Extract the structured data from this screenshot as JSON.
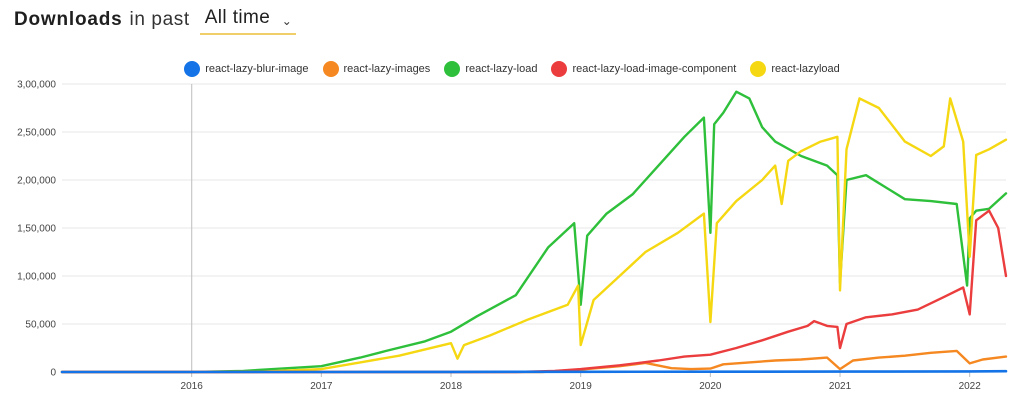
{
  "header": {
    "title": "Downloads",
    "in_past": "in past",
    "range_value": "All time"
  },
  "chart_data": {
    "type": "line",
    "title": "",
    "xlabel": "",
    "ylabel": "",
    "xlim": [
      2015.0,
      2022.28
    ],
    "ylim": [
      0,
      300000
    ],
    "grid": "horizontal",
    "legend_position": "top-center",
    "x_ticks": [
      {
        "value": 2016,
        "label": "2016"
      },
      {
        "value": 2017,
        "label": "2017"
      },
      {
        "value": 2018,
        "label": "2018"
      },
      {
        "value": 2019,
        "label": "2019"
      },
      {
        "value": 2020,
        "label": "2020"
      },
      {
        "value": 2021,
        "label": "2021"
      },
      {
        "value": 2022,
        "label": "2022"
      }
    ],
    "y_ticks": [
      {
        "value": 0,
        "label": "0"
      },
      {
        "value": 50000,
        "label": "50,000"
      },
      {
        "value": 100000,
        "label": "1,00,000"
      },
      {
        "value": 150000,
        "label": "1,50,000"
      },
      {
        "value": 200000,
        "label": "2,00,000"
      },
      {
        "value": 250000,
        "label": "2,50,000"
      },
      {
        "value": 300000,
        "label": "3,00,000"
      }
    ],
    "marker_line_x": 2016.0,
    "series": [
      {
        "name": "react-lazy-blur-image",
        "color": "#1473e6",
        "x": [
          2015.0,
          2016.0,
          2017.0,
          2018.0,
          2019.0,
          2020.0,
          2021.0,
          2022.0,
          2022.28
        ],
        "y": [
          0,
          0,
          0,
          100,
          200,
          300,
          400,
          600,
          800
        ]
      },
      {
        "name": "react-lazy-images",
        "color": "#f58820",
        "x": [
          2015.0,
          2018.0,
          2018.7,
          2019.0,
          2019.3,
          2019.5,
          2019.7,
          2019.85,
          2020.0,
          2020.1,
          2020.3,
          2020.5,
          2020.7,
          2020.9,
          2021.0,
          2021.1,
          2021.3,
          2021.5,
          2021.7,
          2021.9,
          2022.0,
          2022.1,
          2022.28
        ],
        "y": [
          0,
          0,
          0,
          2500,
          6000,
          9500,
          4000,
          3000,
          3500,
          8000,
          10000,
          12000,
          13000,
          15000,
          3000,
          12000,
          15000,
          17000,
          20000,
          22000,
          9000,
          13000,
          16000
        ]
      },
      {
        "name": "react-lazy-load",
        "color": "#2ec03a",
        "x": [
          2015.0,
          2016.0,
          2016.4,
          2016.5,
          2017.0,
          2017.3,
          2017.5,
          2017.8,
          2018.0,
          2018.2,
          2018.5,
          2018.75,
          2018.95,
          2019.0,
          2019.05,
          2019.2,
          2019.4,
          2019.6,
          2019.8,
          2019.95,
          2020.0,
          2020.03,
          2020.1,
          2020.2,
          2020.3,
          2020.4,
          2020.5,
          2020.7,
          2020.9,
          2020.98,
          2021.0,
          2021.05,
          2021.2,
          2021.5,
          2021.7,
          2021.9,
          2021.98,
          2022.0,
          2022.05,
          2022.15,
          2022.28
        ],
        "y": [
          0,
          0,
          1000,
          2000,
          6000,
          15000,
          22000,
          32000,
          42000,
          58000,
          80000,
          130000,
          155000,
          70000,
          142000,
          165000,
          185000,
          215000,
          245000,
          265000,
          145000,
          258000,
          270000,
          292000,
          285000,
          255000,
          240000,
          225000,
          215000,
          205000,
          93000,
          200000,
          205000,
          180000,
          178000,
          175000,
          90000,
          160000,
          168000,
          170000,
          186000
        ]
      },
      {
        "name": "react-lazy-load-image-component",
        "color": "#eb3d3d",
        "x": [
          2015.0,
          2018.5,
          2018.8,
          2019.0,
          2019.3,
          2019.6,
          2019.8,
          2020.0,
          2020.2,
          2020.4,
          2020.6,
          2020.75,
          2020.8,
          2020.9,
          2020.98,
          2021.0,
          2021.05,
          2021.2,
          2021.4,
          2021.6,
          2021.8,
          2021.95,
          2022.0,
          2022.05,
          2022.15,
          2022.22,
          2022.28
        ],
        "y": [
          0,
          0,
          1000,
          3000,
          7000,
          12000,
          16000,
          18000,
          25000,
          33000,
          42000,
          48000,
          53000,
          48000,
          47000,
          25000,
          50000,
          57000,
          60000,
          65000,
          78000,
          88000,
          60000,
          158000,
          168000,
          150000,
          100000
        ]
      },
      {
        "name": "react-lazyload",
        "color": "#f5d812",
        "x": [
          2015.0,
          2016.5,
          2017.0,
          2017.3,
          2017.6,
          2018.0,
          2018.05,
          2018.1,
          2018.3,
          2018.6,
          2018.9,
          2018.98,
          2019.0,
          2019.1,
          2019.3,
          2019.5,
          2019.75,
          2019.95,
          2020.0,
          2020.05,
          2020.2,
          2020.4,
          2020.5,
          2020.55,
          2020.6,
          2020.7,
          2020.85,
          2020.98,
          2021.0,
          2021.05,
          2021.15,
          2021.3,
          2021.5,
          2021.7,
          2021.8,
          2021.85,
          2021.95,
          2022.0,
          2022.05,
          2022.15,
          2022.28
        ],
        "y": [
          0,
          0,
          3000,
          10000,
          17000,
          30000,
          14000,
          28000,
          38000,
          55000,
          70000,
          90000,
          28000,
          75000,
          100000,
          125000,
          145000,
          165000,
          52000,
          155000,
          178000,
          200000,
          215000,
          175000,
          220000,
          230000,
          240000,
          245000,
          85000,
          232000,
          285000,
          275000,
          240000,
          225000,
          235000,
          285000,
          240000,
          120000,
          226000,
          232000,
          242000
        ]
      }
    ]
  }
}
